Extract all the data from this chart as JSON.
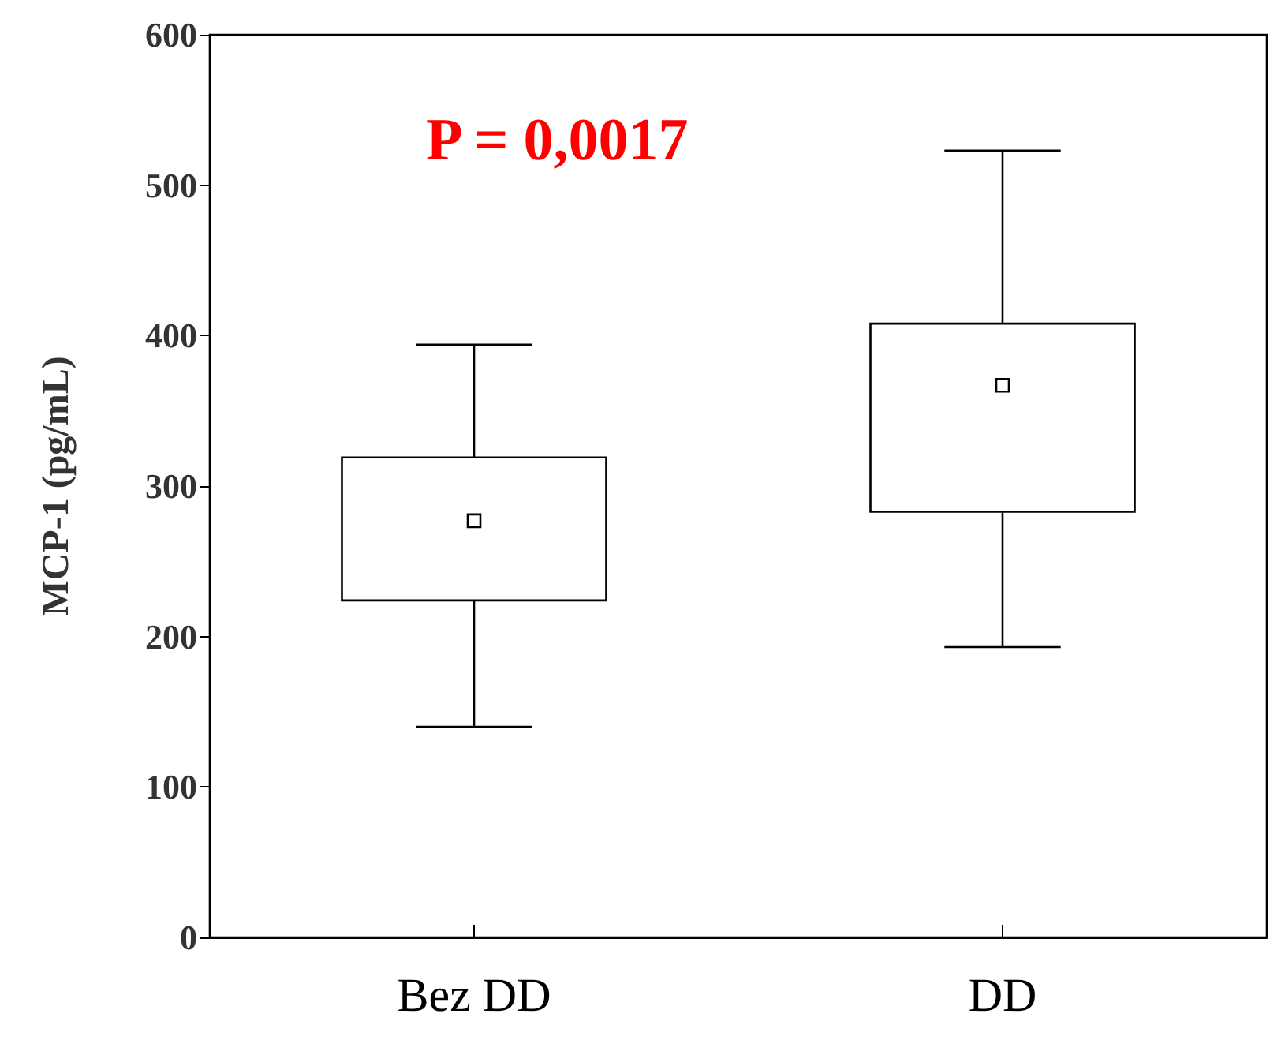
{
  "chart_data": {
    "type": "box",
    "ylabel": "MCP-1 (pg/mL)",
    "annotations": [
      "P = 0,0017"
    ],
    "categories": [
      "Bez DD",
      "DD"
    ],
    "boxes": [
      {
        "low": 140,
        "q1": 224,
        "median": 277,
        "q3": 319,
        "high": 394
      },
      {
        "low": 193,
        "q1": 283,
        "median": 367,
        "q3": 408,
        "high": 523
      }
    ],
    "color": "#000000",
    "marker": "square",
    "ylim": [
      0,
      600
    ],
    "yticks": [
      0,
      100,
      200,
      300,
      400,
      500,
      600
    ]
  }
}
